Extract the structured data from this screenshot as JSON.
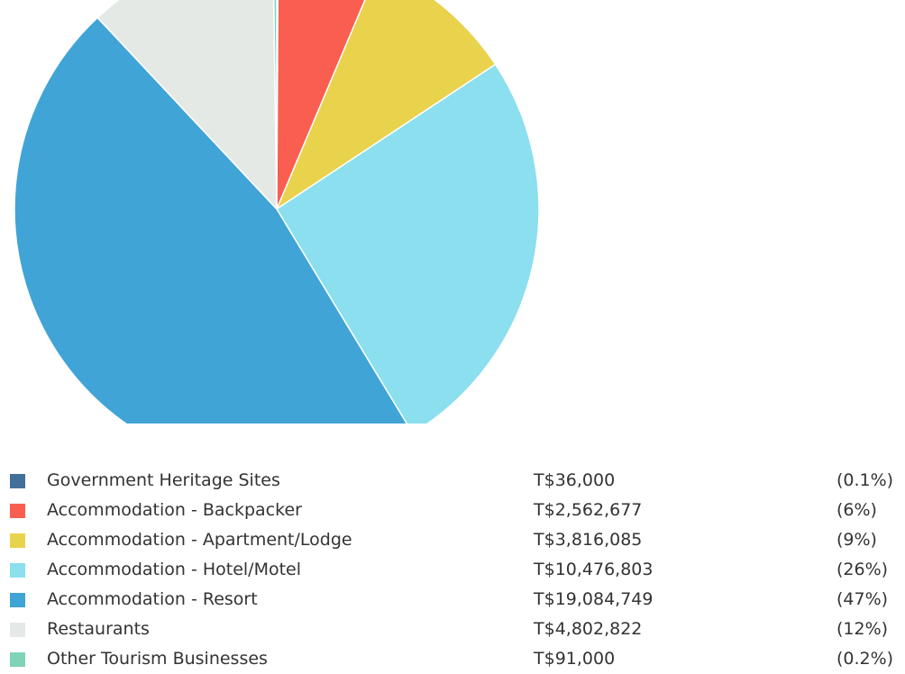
{
  "chart_data": {
    "type": "pie",
    "currency_prefix": "T$",
    "slices": [
      {
        "label": "Government Heritage Sites",
        "value": 36000,
        "value_text": "T$36,000",
        "percent_text": "(0.1%)",
        "color": "#426F98"
      },
      {
        "label": "Accommodation - Backpacker",
        "value": 2562677,
        "value_text": "T$2,562,677",
        "percent_text": "(6%)",
        "color": "#FA5E50"
      },
      {
        "label": "Accommodation - Apartment/Lodge",
        "value": 3816085,
        "value_text": "T$3,816,085",
        "percent_text": "(9%)",
        "color": "#E9D24C"
      },
      {
        "label": "Accommodation - Hotel/Motel",
        "value": 10476803,
        "value_text": "T$10,476,803",
        "percent_text": "(26%)",
        "color": "#8BDFEE"
      },
      {
        "label": "Accommodation - Resort",
        "value": 19084749,
        "value_text": "T$19,084,749",
        "percent_text": "(47%)",
        "color": "#40A4D6"
      },
      {
        "label": "Restaurants",
        "value": 4802822,
        "value_text": "T$4,802,822",
        "percent_text": "(12%)",
        "color": "#E4E9E6"
      },
      {
        "label": "Other Tourism Businesses",
        "value": 91000,
        "value_text": "T$91,000",
        "percent_text": "(0.2%)",
        "color": "#7ED3B8"
      }
    ],
    "start_angle": "top",
    "direction": "clockwise",
    "legend_position": "bottom"
  }
}
